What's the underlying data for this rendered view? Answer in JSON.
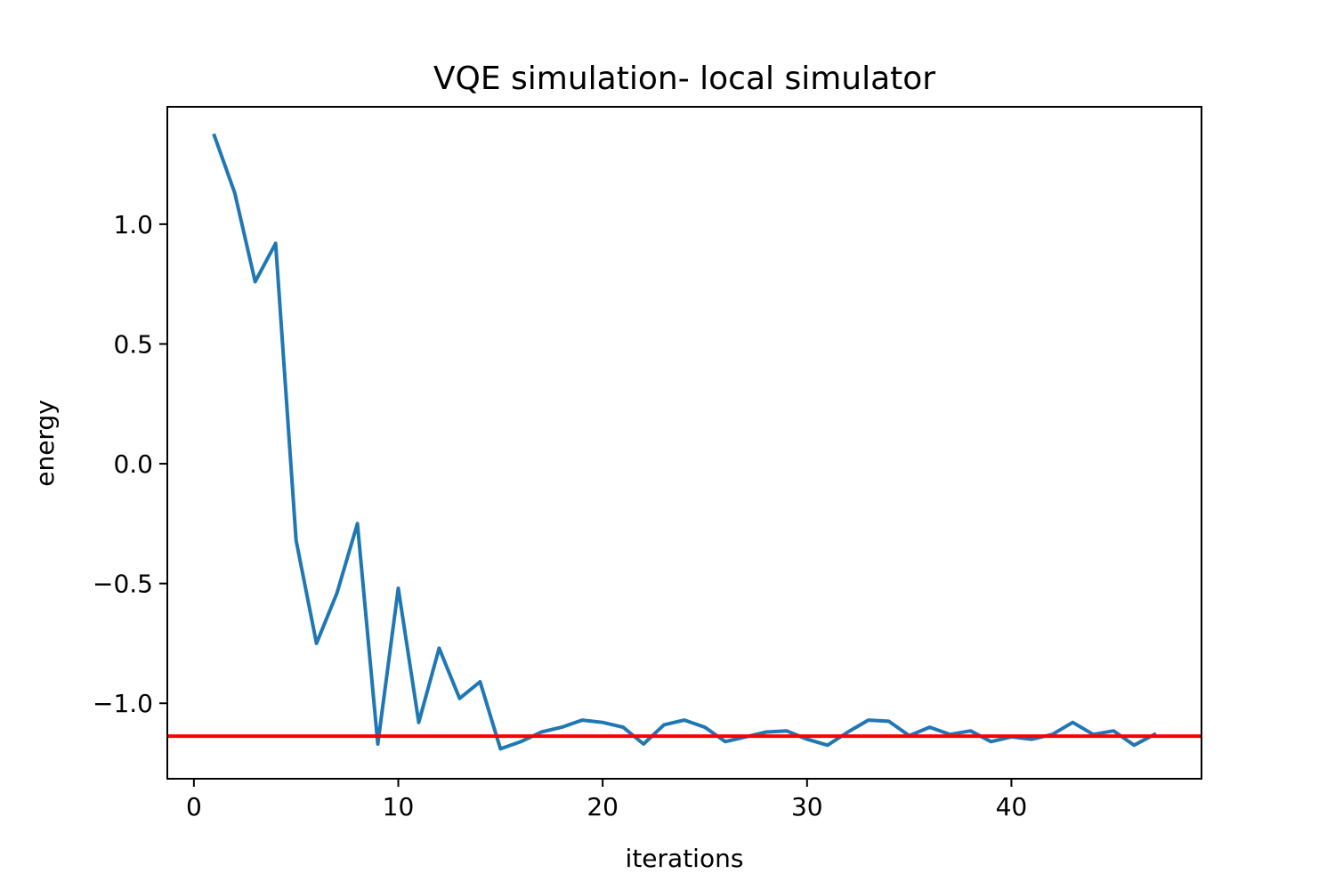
{
  "chart_data": {
    "type": "line",
    "title": "VQE simulation- local simulator",
    "xlabel": "iterations",
    "ylabel": "energy",
    "xlim": [
      -1.3,
      49.3
    ],
    "ylim": [
      -1.315,
      1.49
    ],
    "x_ticks": [
      0,
      10,
      20,
      30,
      40
    ],
    "x_tick_labels": [
      "0",
      "10",
      "20",
      "30",
      "40"
    ],
    "y_ticks": [
      1.0,
      0.5,
      0.0,
      -0.5,
      -1.0
    ],
    "y_tick_labels": [
      "1.0",
      "0.5",
      "0.0",
      "−0.5",
      "−1.0"
    ],
    "grid": false,
    "series": [
      {
        "color": "#1f77b4",
        "x": [
          1,
          2,
          3,
          4,
          5,
          6,
          7,
          8,
          9,
          10,
          11,
          12,
          13,
          14,
          15,
          16,
          17,
          18,
          19,
          20,
          21,
          22,
          23,
          24,
          25,
          26,
          27,
          28,
          29,
          30,
          31,
          32,
          33,
          34,
          35,
          36,
          37,
          38,
          39,
          40,
          41,
          42,
          43,
          44,
          45,
          46,
          47
        ],
        "y": [
          1.37,
          1.13,
          0.76,
          0.92,
          -0.32,
          -0.75,
          -0.54,
          -0.25,
          -1.17,
          -0.52,
          -1.08,
          -0.77,
          -0.98,
          -0.91,
          -1.19,
          -1.16,
          -1.12,
          -1.1,
          -1.07,
          -1.08,
          -1.1,
          -1.17,
          -1.09,
          -1.07,
          -1.1,
          -1.16,
          -1.14,
          -1.12,
          -1.115,
          -1.15,
          -1.175,
          -1.12,
          -1.07,
          -1.075,
          -1.135,
          -1.1,
          -1.13,
          -1.115,
          -1.16,
          -1.14,
          -1.15,
          -1.13,
          -1.08,
          -1.13,
          -1.115,
          -1.175,
          -1.13
        ]
      }
    ],
    "hlines": [
      {
        "color": "#ff0000",
        "y": -1.137
      }
    ]
  }
}
